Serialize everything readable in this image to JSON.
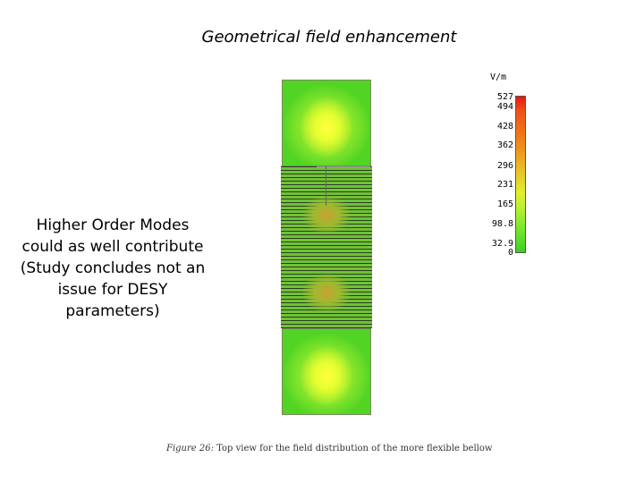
{
  "slide": {
    "title": "Geometrical field enhancement",
    "note_lines": [
      "Higher Order Modes",
      "could as well contribute",
      "(Study concludes not an",
      "issue for DESY",
      "parameters)"
    ]
  },
  "figure": {
    "units": "V/m",
    "colorbar_ticks": [
      "527",
      "494",
      "428",
      "362",
      "296",
      "231",
      "165",
      "98.8",
      "32.9",
      "0"
    ],
    "caption_prefix": "Figure 26:",
    "caption_text": "Top view for the field distribution of the more flexible bellow"
  },
  "colors": {
    "max_field": "#e81810",
    "mid_field": "#e8c828",
    "min_field": "#3cd024"
  }
}
